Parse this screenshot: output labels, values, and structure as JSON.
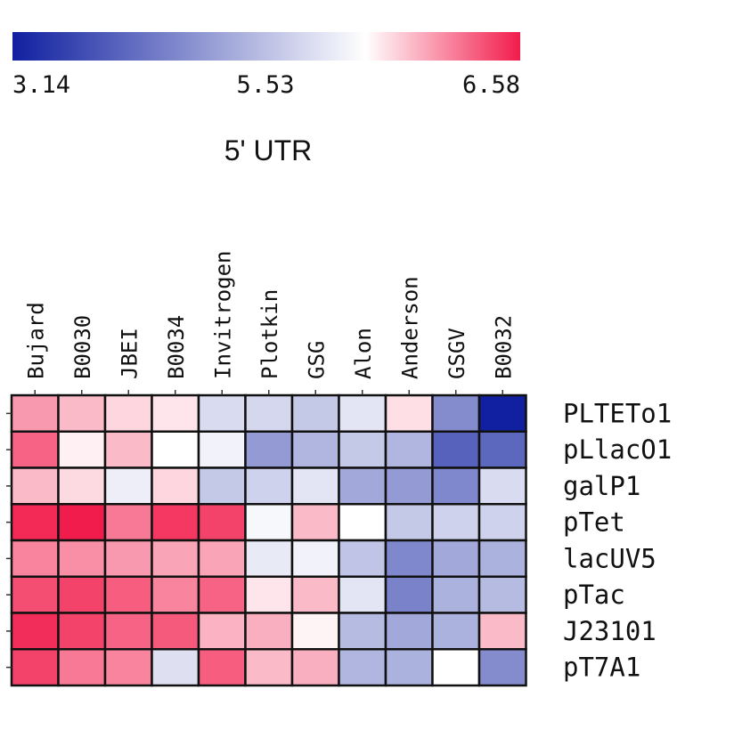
{
  "chart_data": {
    "type": "heatmap",
    "title": "5' UTR",
    "colorbar": {
      "min": 3.14,
      "mid": 5.53,
      "max": 6.58,
      "tick_labels": [
        "3.14",
        "5.53",
        "6.58"
      ],
      "colors": {
        "low": "#1020a0",
        "mid": "#ffffff",
        "high": "#f21c4c"
      }
    },
    "columns": [
      "Bujard",
      "B0030",
      "JBEI",
      "B0034",
      "Invitrogen",
      "Plotkin",
      "GSG",
      "Alon",
      "Anderson",
      "GSGV",
      "B0032"
    ],
    "rows": [
      "PLTETo1",
      "pLlacO1",
      "galP1",
      "pTet",
      "lacUV5",
      "pTac",
      "J23101",
      "pT7A1"
    ],
    "values": [
      [
        6.0,
        5.85,
        5.72,
        5.65,
        5.15,
        5.1,
        4.95,
        5.25,
        5.68,
        4.3,
        3.14
      ],
      [
        6.25,
        5.6,
        5.85,
        5.53,
        5.4,
        4.45,
        4.75,
        4.95,
        4.75,
        3.85,
        3.9
      ],
      [
        5.85,
        5.7,
        5.35,
        5.72,
        4.95,
        5.05,
        5.25,
        4.6,
        4.45,
        4.25,
        5.15
      ],
      [
        6.52,
        6.58,
        6.15,
        6.45,
        6.4,
        5.45,
        5.85,
        5.53,
        4.95,
        5.05,
        5.05
      ],
      [
        6.1,
        6.05,
        6.0,
        5.95,
        5.95,
        5.3,
        5.4,
        4.9,
        4.25,
        4.6,
        4.7
      ],
      [
        6.35,
        6.4,
        6.28,
        6.1,
        6.25,
        5.65,
        5.85,
        5.25,
        4.2,
        4.7,
        4.8
      ],
      [
        6.5,
        6.4,
        6.25,
        6.3,
        5.88,
        5.9,
        5.58,
        4.8,
        4.6,
        4.7,
        5.85
      ],
      [
        6.4,
        6.15,
        6.1,
        5.2,
        6.28,
        5.85,
        5.9,
        4.75,
        4.7,
        5.53,
        4.3
      ]
    ]
  }
}
